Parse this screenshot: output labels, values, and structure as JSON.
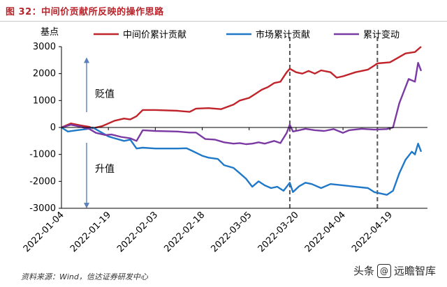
{
  "figure": {
    "title": "图 32：中间价贡献所反映的操作思路",
    "source": "资料来源：Wind，信达证券研发中心",
    "watermark_prefix": "头条",
    "watermark_badge": "@",
    "watermark_name": "远瞻智库",
    "colors": {
      "title": "#b8232a",
      "series_mid": "#c0232a",
      "series_market": "#1f78c8",
      "series_total": "#7b3aa3",
      "arrow": "#5b7fb8",
      "vline": "#555555"
    }
  },
  "chart_data": {
    "type": "line",
    "ylabel": "基点",
    "ylim": [
      -3000,
      3000
    ],
    "yticks": [
      3000,
      2000,
      1000,
      0,
      -1000,
      -2000,
      -3000
    ],
    "xlim": [
      "2022-01-04",
      "2022-05-01"
    ],
    "xticks": [
      "2022-01-04",
      "2022-01-19",
      "2022-02-03",
      "2022-02-18",
      "2022-03-05",
      "2022-03-20",
      "2022-04-04",
      "2022-04-19"
    ],
    "legend_position": "top",
    "annotations": [
      {
        "text": "贬值",
        "direction": "up",
        "from": 0,
        "to": 2500
      },
      {
        "text": "升值",
        "direction": "down",
        "from": 0,
        "to": -2900
      }
    ],
    "vlines": [
      "2022-03-18",
      "2022-04-15"
    ],
    "series": [
      {
        "name": "中间价累计贡献",
        "color": "#c0232a",
        "points": [
          [
            "2022-01-04",
            0
          ],
          [
            "2022-01-07",
            150
          ],
          [
            "2022-01-10",
            80
          ],
          [
            "2022-01-13",
            20
          ],
          [
            "2022-01-14",
            -30
          ],
          [
            "2022-01-17",
            50
          ],
          [
            "2022-01-19",
            150
          ],
          [
            "2022-01-21",
            250
          ],
          [
            "2022-01-24",
            330
          ],
          [
            "2022-01-26",
            300
          ],
          [
            "2022-01-28",
            420
          ],
          [
            "2022-01-30",
            650
          ],
          [
            "2022-02-03",
            650
          ],
          [
            "2022-02-10",
            620
          ],
          [
            "2022-02-14",
            580
          ],
          [
            "2022-02-16",
            700
          ],
          [
            "2022-02-20",
            720
          ],
          [
            "2022-02-24",
            680
          ],
          [
            "2022-02-28",
            850
          ],
          [
            "2022-03-02",
            1000
          ],
          [
            "2022-03-05",
            1100
          ],
          [
            "2022-03-07",
            1250
          ],
          [
            "2022-03-09",
            1400
          ],
          [
            "2022-03-11",
            1500
          ],
          [
            "2022-03-13",
            1650
          ],
          [
            "2022-03-15",
            1700
          ],
          [
            "2022-03-17",
            2050
          ],
          [
            "2022-03-18",
            2180
          ],
          [
            "2022-03-20",
            2050
          ],
          [
            "2022-03-22",
            2000
          ],
          [
            "2022-03-24",
            2100
          ],
          [
            "2022-03-26",
            2000
          ],
          [
            "2022-03-28",
            2120
          ],
          [
            "2022-03-31",
            2050
          ],
          [
            "2022-04-02",
            1850
          ],
          [
            "2022-04-04",
            1900
          ],
          [
            "2022-04-08",
            2050
          ],
          [
            "2022-04-12",
            2150
          ],
          [
            "2022-04-14",
            2300
          ],
          [
            "2022-04-15",
            2380
          ],
          [
            "2022-04-19",
            2420
          ],
          [
            "2022-04-21",
            2550
          ],
          [
            "2022-04-24",
            2750
          ],
          [
            "2022-04-27",
            2800
          ],
          [
            "2022-04-29",
            3000
          ]
        ]
      },
      {
        "name": "市场累计贡献",
        "color": "#1f78c8",
        "points": [
          [
            "2022-01-04",
            0
          ],
          [
            "2022-01-06",
            -150
          ],
          [
            "2022-01-09",
            -100
          ],
          [
            "2022-01-12",
            -60
          ],
          [
            "2022-01-14",
            0
          ],
          [
            "2022-01-17",
            -200
          ],
          [
            "2022-01-19",
            -330
          ],
          [
            "2022-01-21",
            -400
          ],
          [
            "2022-01-24",
            -500
          ],
          [
            "2022-01-26",
            -450
          ],
          [
            "2022-01-28",
            -780
          ],
          [
            "2022-01-30",
            -750
          ],
          [
            "2022-02-03",
            -780
          ],
          [
            "2022-02-10",
            -780
          ],
          [
            "2022-02-13",
            -770
          ],
          [
            "2022-02-15",
            -880
          ],
          [
            "2022-02-18",
            -1050
          ],
          [
            "2022-02-20",
            -1120
          ],
          [
            "2022-02-23",
            -1170
          ],
          [
            "2022-02-25",
            -1400
          ],
          [
            "2022-02-28",
            -1500
          ],
          [
            "2022-03-02",
            -1700
          ],
          [
            "2022-03-04",
            -1900
          ],
          [
            "2022-03-06",
            -2200
          ],
          [
            "2022-03-08",
            -2000
          ],
          [
            "2022-03-10",
            -2150
          ],
          [
            "2022-03-12",
            -2250
          ],
          [
            "2022-03-14",
            -2200
          ],
          [
            "2022-03-16",
            -2350
          ],
          [
            "2022-03-18",
            -2050
          ],
          [
            "2022-03-19",
            -2400
          ],
          [
            "2022-03-21",
            -2180
          ],
          [
            "2022-03-23",
            -2050
          ],
          [
            "2022-03-25",
            -2100
          ],
          [
            "2022-03-28",
            -2250
          ],
          [
            "2022-03-31",
            -2100
          ],
          [
            "2022-04-04",
            -2150
          ],
          [
            "2022-04-08",
            -2200
          ],
          [
            "2022-04-12",
            -2250
          ],
          [
            "2022-04-14",
            -2400
          ],
          [
            "2022-04-16",
            -2450
          ],
          [
            "2022-04-18",
            -2500
          ],
          [
            "2022-04-20",
            -2350
          ],
          [
            "2022-04-22",
            -1700
          ],
          [
            "2022-04-24",
            -1200
          ],
          [
            "2022-04-26",
            -900
          ],
          [
            "2022-04-27",
            -1000
          ],
          [
            "2022-04-28",
            -600
          ],
          [
            "2022-04-29",
            -900
          ]
        ]
      },
      {
        "name": "累计变动",
        "color": "#7b3aa3",
        "points": [
          [
            "2022-01-04",
            0
          ],
          [
            "2022-01-07",
            100
          ],
          [
            "2022-01-10",
            30
          ],
          [
            "2022-01-13",
            -60
          ],
          [
            "2022-01-15",
            -200
          ],
          [
            "2022-01-18",
            -280
          ],
          [
            "2022-01-20",
            -260
          ],
          [
            "2022-01-23",
            -350
          ],
          [
            "2022-01-26",
            -400
          ],
          [
            "2022-01-28",
            -500
          ],
          [
            "2022-01-30",
            -100
          ],
          [
            "2022-02-03",
            -130
          ],
          [
            "2022-02-10",
            -150
          ],
          [
            "2022-02-14",
            -190
          ],
          [
            "2022-02-16",
            -190
          ],
          [
            "2022-02-19",
            -430
          ],
          [
            "2022-02-22",
            -450
          ],
          [
            "2022-02-25",
            -550
          ],
          [
            "2022-02-28",
            -600
          ],
          [
            "2022-03-02",
            -580
          ],
          [
            "2022-03-04",
            -620
          ],
          [
            "2022-03-06",
            -600
          ],
          [
            "2022-03-08",
            -550
          ],
          [
            "2022-03-10",
            -600
          ],
          [
            "2022-03-13",
            -500
          ],
          [
            "2022-03-15",
            -580
          ],
          [
            "2022-03-17",
            -200
          ],
          [
            "2022-03-18",
            100
          ],
          [
            "2022-03-19",
            -150
          ],
          [
            "2022-03-21",
            -100
          ],
          [
            "2022-03-23",
            -50
          ],
          [
            "2022-03-26",
            -100
          ],
          [
            "2022-03-29",
            -130
          ],
          [
            "2022-04-01",
            -60
          ],
          [
            "2022-04-04",
            -200
          ],
          [
            "2022-04-06",
            -100
          ],
          [
            "2022-04-10",
            -50
          ],
          [
            "2022-04-14",
            -80
          ],
          [
            "2022-04-18",
            -60
          ],
          [
            "2022-04-20",
            0
          ],
          [
            "2022-04-22",
            900
          ],
          [
            "2022-04-25",
            1800
          ],
          [
            "2022-04-27",
            1700
          ],
          [
            "2022-04-28",
            2400
          ],
          [
            "2022-04-29",
            2100
          ]
        ]
      }
    ]
  }
}
